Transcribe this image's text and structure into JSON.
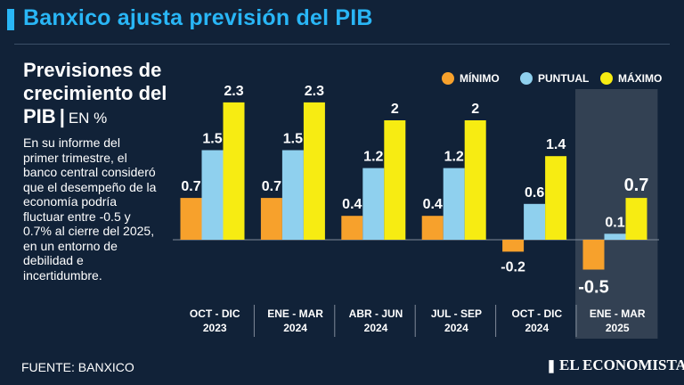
{
  "header": {
    "headline": "Banxico ajusta previsión del PIB"
  },
  "sidebar": {
    "title_main": "Previsiones de crecimiento del PIB",
    "title_sep": "|",
    "title_unit": "EN %",
    "description": "En su informe del primer trimestre, el banco central consideró que el desempeño de la economía podría fluctuar entre -0.5 y 0.7% al cierre del 2025, en un entorno de debilidad e incertidumbre.",
    "source": "FUENTE: BANXICO",
    "brand": "EL ECONOMISTA",
    "brand_icon": "book-icon"
  },
  "colors": {
    "background": "#112238",
    "headline": "#29b6f6",
    "minimo": "#f7a12c",
    "puntual": "#8fd0ee",
    "maximo": "#f7ec12",
    "highlight": "#3a4658"
  },
  "chart_data": {
    "type": "bar",
    "categories": [
      [
        "OCT - DIC",
        "2023"
      ],
      [
        "ENE - MAR",
        "2024"
      ],
      [
        "ABR - JUN",
        "2024"
      ],
      [
        "JUL - SEP",
        "2024"
      ],
      [
        "OCT - DIC",
        "2024"
      ],
      [
        "ENE - MAR",
        "2025"
      ]
    ],
    "series": [
      {
        "name": "MÍNIMO",
        "values": [
          0.7,
          0.7,
          0.4,
          0.4,
          -0.2,
          -0.5
        ]
      },
      {
        "name": "PUNTUAL",
        "values": [
          1.5,
          1.5,
          1.2,
          1.2,
          0.6,
          0.1
        ]
      },
      {
        "name": "MÁXIMO",
        "values": [
          2.3,
          2.3,
          2,
          2,
          1.4,
          0.7
        ]
      }
    ],
    "value_labels": [
      [
        "0.7",
        "1.5",
        "2.3"
      ],
      [
        "0.7",
        "1.5",
        "2.3"
      ],
      [
        "0.4",
        "1.2",
        "2"
      ],
      [
        "0.4",
        "1.2",
        "2"
      ],
      [
        "-0.2",
        "0.6",
        "1.4"
      ],
      [
        "-0.5",
        "0.1",
        "0.7"
      ]
    ],
    "highlighted_category": 5,
    "legend_position": "top-right",
    "grid": false,
    "ylim": [
      -0.7,
      2.6
    ]
  }
}
